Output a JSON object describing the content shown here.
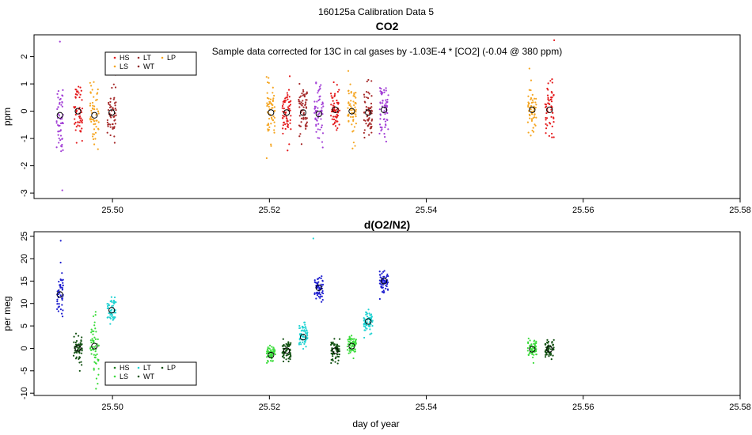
{
  "title": "160125a   Calibration Data 5",
  "xlabel": "day of year",
  "chart_data": [
    {
      "type": "scatter",
      "title": "CO2",
      "ylabel": "ppm",
      "annotation": "Sample data corrected for 13C in cal gases by -1.03E-4 * [CO2] (-0.04 @ 380 ppm)",
      "xlim": [
        25.49,
        25.58
      ],
      "ylim": [
        -3.2,
        2.8
      ],
      "x_ticks": [
        "25.50",
        "25.52",
        "25.54",
        "25.56",
        "25.58"
      ],
      "x_tick_values": [
        25.5,
        25.52,
        25.54,
        25.56,
        25.58
      ],
      "y_ticks": [
        "-3",
        "-2",
        "-1",
        "0",
        "1",
        "2"
      ],
      "y_tick_values": [
        -3,
        -2,
        -1,
        0,
        1,
        2
      ],
      "legend": {
        "placement": "top-left",
        "entries": [
          {
            "label": "HS",
            "color": "#e41a1c"
          },
          {
            "label": "LT",
            "color": "#9a2e2e"
          },
          {
            "label": "LP",
            "color": "#f5a623"
          },
          {
            "label": "LS",
            "color": "#f5a623"
          },
          {
            "label": "WT",
            "color": "#8b2222"
          }
        ]
      },
      "groups": [
        {
          "name": "g1",
          "x": 25.4933,
          "width": 0.0006,
          "mean": -0.15,
          "spread": 0.9,
          "color": "#a23fd6",
          "n": 50
        },
        {
          "name": "g2",
          "x": 25.4956,
          "width": 0.0008,
          "mean": 0.0,
          "spread": 0.6,
          "color": "#e41a1c",
          "n": 55
        },
        {
          "name": "g3",
          "x": 25.4977,
          "width": 0.0008,
          "mean": -0.15,
          "spread": 0.7,
          "color": "#f5a623",
          "n": 55
        },
        {
          "name": "g4",
          "x": 25.4999,
          "width": 0.0008,
          "mean": -0.05,
          "spread": 0.6,
          "color": "#a52a2a",
          "n": 55
        },
        {
          "name": "g5",
          "x": 25.5202,
          "width": 0.0008,
          "mean": -0.05,
          "spread": 0.6,
          "color": "#f5a623",
          "n": 60
        },
        {
          "name": "g6",
          "x": 25.5222,
          "width": 0.0008,
          "mean": -0.05,
          "spread": 0.6,
          "color": "#e41a1c",
          "n": 60
        },
        {
          "name": "g7",
          "x": 25.5243,
          "width": 0.0008,
          "mean": -0.05,
          "spread": 0.6,
          "color": "#a52a2a",
          "n": 60
        },
        {
          "name": "g8",
          "x": 25.5263,
          "width": 0.0008,
          "mean": -0.1,
          "spread": 0.6,
          "color": "#a23fd6",
          "n": 60
        },
        {
          "name": "g9",
          "x": 25.5284,
          "width": 0.0008,
          "mean": 0.05,
          "spread": 0.6,
          "color": "#e41a1c",
          "n": 60
        },
        {
          "name": "g10",
          "x": 25.5305,
          "width": 0.0008,
          "mean": 0.0,
          "spread": 0.6,
          "color": "#f5a623",
          "n": 60
        },
        {
          "name": "g11",
          "x": 25.5326,
          "width": 0.0008,
          "mean": -0.05,
          "spread": 0.6,
          "color": "#a52a2a",
          "n": 60
        },
        {
          "name": "g12",
          "x": 25.5346,
          "width": 0.0008,
          "mean": 0.05,
          "spread": 0.6,
          "color": "#a23fd6",
          "n": 60
        },
        {
          "name": "g13",
          "x": 25.5535,
          "width": 0.0008,
          "mean": 0.05,
          "spread": 0.6,
          "color": "#f5a623",
          "n": 55
        },
        {
          "name": "g14",
          "x": 25.5557,
          "width": 0.0008,
          "mean": 0.05,
          "spread": 0.6,
          "color": "#e41a1c",
          "n": 55
        }
      ],
      "outliers": [
        {
          "x": 25.4933,
          "y": 2.55,
          "color": "#a23fd6"
        },
        {
          "x": 25.4936,
          "y": -2.9,
          "color": "#a23fd6"
        },
        {
          "x": 25.5563,
          "y": 2.6,
          "color": "#e41a1c"
        }
      ]
    },
    {
      "type": "scatter",
      "title": "d(O2/N2)",
      "ylabel": "per meg",
      "xlim": [
        25.49,
        25.58
      ],
      "ylim": [
        -10.5,
        26
      ],
      "x_ticks": [
        "25.50",
        "25.52",
        "25.54",
        "25.56",
        "25.58"
      ],
      "x_tick_values": [
        25.5,
        25.52,
        25.54,
        25.56,
        25.58
      ],
      "y_ticks": [
        "-10",
        "-5",
        "0",
        "5",
        "10",
        "15",
        "20",
        "25"
      ],
      "y_tick_values": [
        -10,
        -5,
        0,
        5,
        10,
        15,
        20,
        25
      ],
      "legend": {
        "placement": "bottom-left",
        "entries": [
          {
            "label": "HS",
            "color": "#1a7a1a"
          },
          {
            "label": "LT",
            "color": "#22d3d3"
          },
          {
            "label": "LP",
            "color": "#145214"
          },
          {
            "label": "LS",
            "color": "#3ddc3d"
          },
          {
            "label": "WT",
            "color": "#145214"
          }
        ]
      },
      "groups": [
        {
          "name": "g1",
          "x": 25.4933,
          "width": 0.0006,
          "mean": 12.0,
          "spread": 3.5,
          "color": "#1f1fcf",
          "n": 50
        },
        {
          "name": "g2",
          "x": 25.4956,
          "width": 0.0008,
          "mean": 0.0,
          "spread": 2.2,
          "color": "#145214",
          "n": 55
        },
        {
          "name": "g3",
          "x": 25.4977,
          "width": 0.0008,
          "mean": 0.5,
          "spread": 4.0,
          "color": "#3ddc3d",
          "n": 55
        },
        {
          "name": "g4",
          "x": 25.4999,
          "width": 0.0008,
          "mean": 8.5,
          "spread": 2.0,
          "color": "#22d3d3",
          "n": 55
        },
        {
          "name": "g5",
          "x": 25.5202,
          "width": 0.0008,
          "mean": -1.5,
          "spread": 1.2,
          "color": "#3ddc3d",
          "n": 60
        },
        {
          "name": "g6",
          "x": 25.5222,
          "width": 0.0008,
          "mean": -0.5,
          "spread": 1.5,
          "color": "#145214",
          "n": 60
        },
        {
          "name": "g7",
          "x": 25.5243,
          "width": 0.0008,
          "mean": 2.5,
          "spread": 1.8,
          "color": "#22d3d3",
          "n": 60
        },
        {
          "name": "g8",
          "x": 25.5263,
          "width": 0.0008,
          "mean": 13.5,
          "spread": 1.5,
          "color": "#1f1fcf",
          "n": 60
        },
        {
          "name": "g9",
          "x": 25.5284,
          "width": 0.0008,
          "mean": -0.5,
          "spread": 1.5,
          "color": "#145214",
          "n": 60
        },
        {
          "name": "g10",
          "x": 25.5305,
          "width": 0.0008,
          "mean": 0.5,
          "spread": 1.3,
          "color": "#3ddc3d",
          "n": 60
        },
        {
          "name": "g11",
          "x": 25.5326,
          "width": 0.0008,
          "mean": 6.0,
          "spread": 1.6,
          "color": "#22d3d3",
          "n": 60
        },
        {
          "name": "g12",
          "x": 25.5346,
          "width": 0.0008,
          "mean": 15.0,
          "spread": 1.5,
          "color": "#1f1fcf",
          "n": 60
        },
        {
          "name": "g13",
          "x": 25.5535,
          "width": 0.0008,
          "mean": -0.2,
          "spread": 1.3,
          "color": "#3ddc3d",
          "n": 55
        },
        {
          "name": "g14",
          "x": 25.5557,
          "width": 0.0008,
          "mean": -0.2,
          "spread": 1.3,
          "color": "#145214",
          "n": 55
        }
      ],
      "outliers": [
        {
          "x": 25.4934,
          "y": 24.0,
          "color": "#1f1fcf"
        },
        {
          "x": 25.5256,
          "y": 24.5,
          "color": "#22d3d3"
        },
        {
          "x": 25.4979,
          "y": -9.0,
          "color": "#3ddc3d"
        }
      ]
    }
  ]
}
